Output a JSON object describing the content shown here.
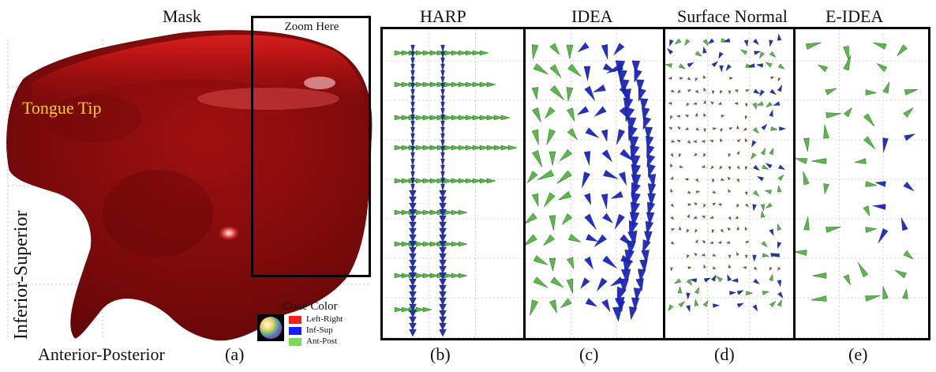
{
  "panel_a": {
    "title": "Mask",
    "zoom_label": "Zoom Here",
    "tip_label": "Tongue Tip",
    "y_axis_label": "Inferior-Superior",
    "x_axis_label": "Anterior-Posterior",
    "sub_label": "(a)"
  },
  "legend": {
    "title": "Cone Color",
    "items": [
      {
        "label": "Left-Right",
        "color": "#ff1a1a"
      },
      {
        "label": "Inf-Sup",
        "color": "#1a1aff"
      },
      {
        "label": "Ant-Post",
        "color": "#7ed957"
      }
    ]
  },
  "panels": [
    {
      "title": "HARP",
      "sub_label": "(b)"
    },
    {
      "title": "IDEA",
      "sub_label": "(c)"
    },
    {
      "title": "Surface Normal",
      "sub_label": "(d)"
    },
    {
      "title": "E-IDEA",
      "sub_label": "(e)"
    }
  ],
  "colors": {
    "mask_red": "#b01010",
    "cone_blue": "#1c22c8",
    "cone_green": "#4fb83c",
    "cone_red": "#c43a1c"
  }
}
